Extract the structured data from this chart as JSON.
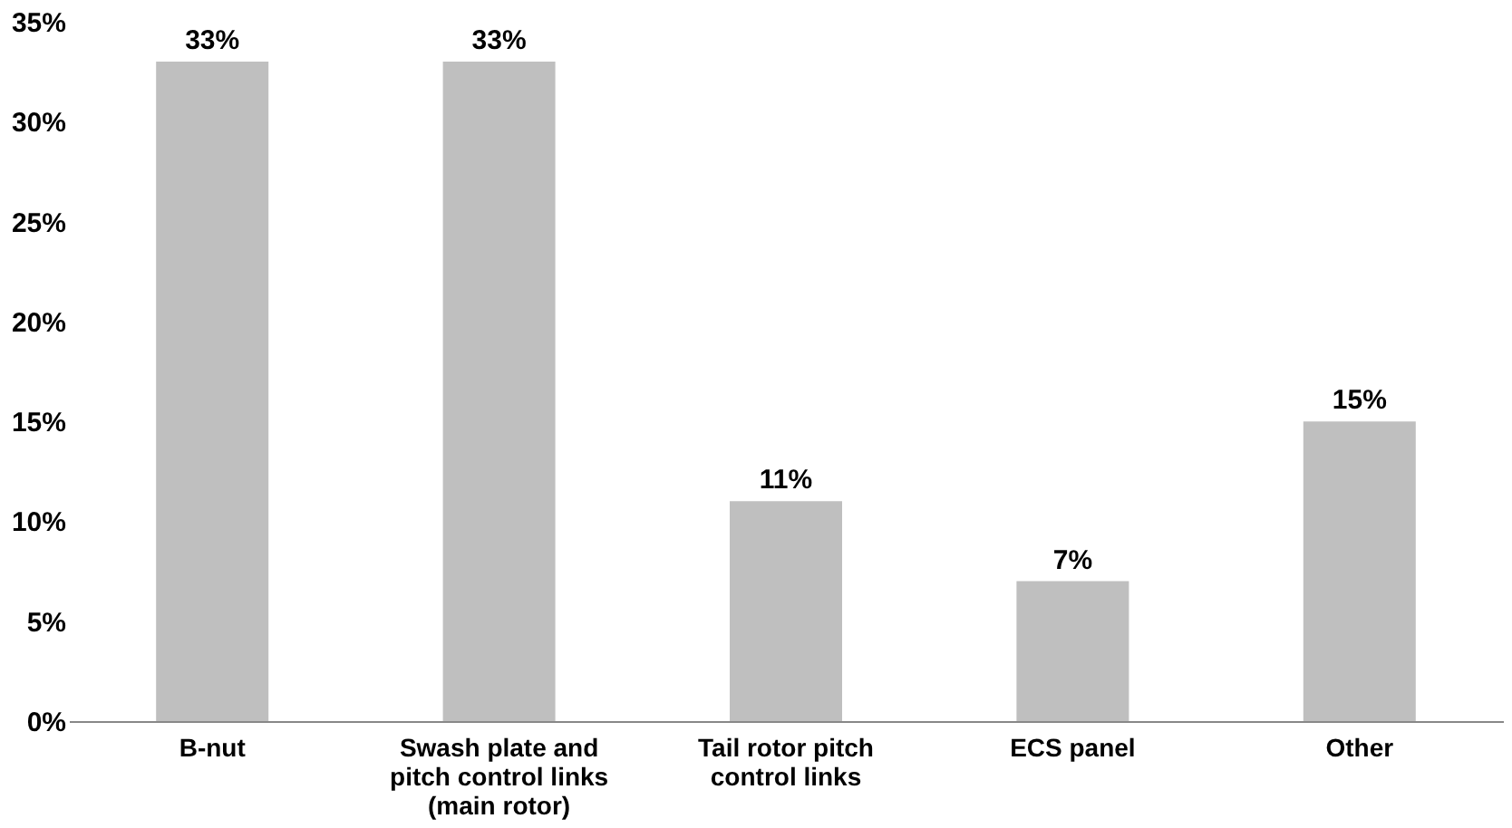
{
  "chart_data": {
    "type": "bar",
    "categories": [
      "B-nut",
      "Swash plate and pitch control links (main rotor)",
      "Tail rotor pitch control links",
      "ECS panel",
      "Other"
    ],
    "values": [
      33,
      33,
      11,
      7,
      15
    ],
    "value_labels": [
      "33%",
      "33%",
      "11%",
      "7%",
      "15%"
    ],
    "color": "#bfbfbf",
    "ylim": [
      0,
      35
    ],
    "yticks": [
      {
        "value": 0,
        "label": "0%"
      },
      {
        "value": 5,
        "label": "5%"
      },
      {
        "value": 10,
        "label": "10%"
      },
      {
        "value": 15,
        "label": "15%"
      },
      {
        "value": 20,
        "label": "20%"
      },
      {
        "value": 25,
        "label": "25%"
      },
      {
        "value": 30,
        "label": "30%"
      },
      {
        "value": 35,
        "label": "35%"
      }
    ],
    "grid": false
  }
}
